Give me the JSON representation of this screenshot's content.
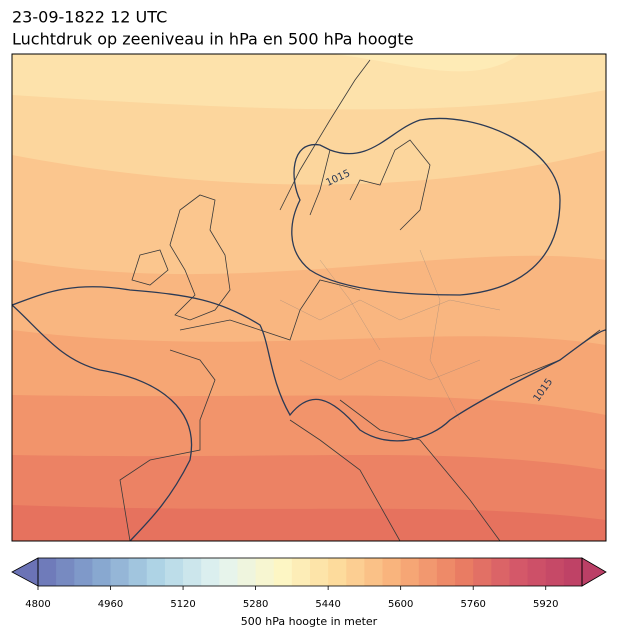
{
  "header": {
    "title": "23-09-1822 12 UTC",
    "subtitle": "Luchtdruk op zeeniveau in hPa en 500 hPa hoogte"
  },
  "map": {
    "isobar_labels": [
      "1015",
      "1015"
    ]
  },
  "colorbar": {
    "lim": [
      4800,
      6000
    ],
    "step": 40,
    "ticks": [
      4800,
      4960,
      5120,
      5280,
      5440,
      5600,
      5760,
      5920
    ],
    "label": "500 hPa hoogte in meter",
    "colors": [
      "#6b73b6",
      "#86a6cf",
      "#b0d5e6",
      "#e3f3f1",
      "#fdf7c6",
      "#fdd99a",
      "#f8ad78",
      "#ea7e63",
      "#d35669",
      "#bb3f66"
    ]
  }
}
